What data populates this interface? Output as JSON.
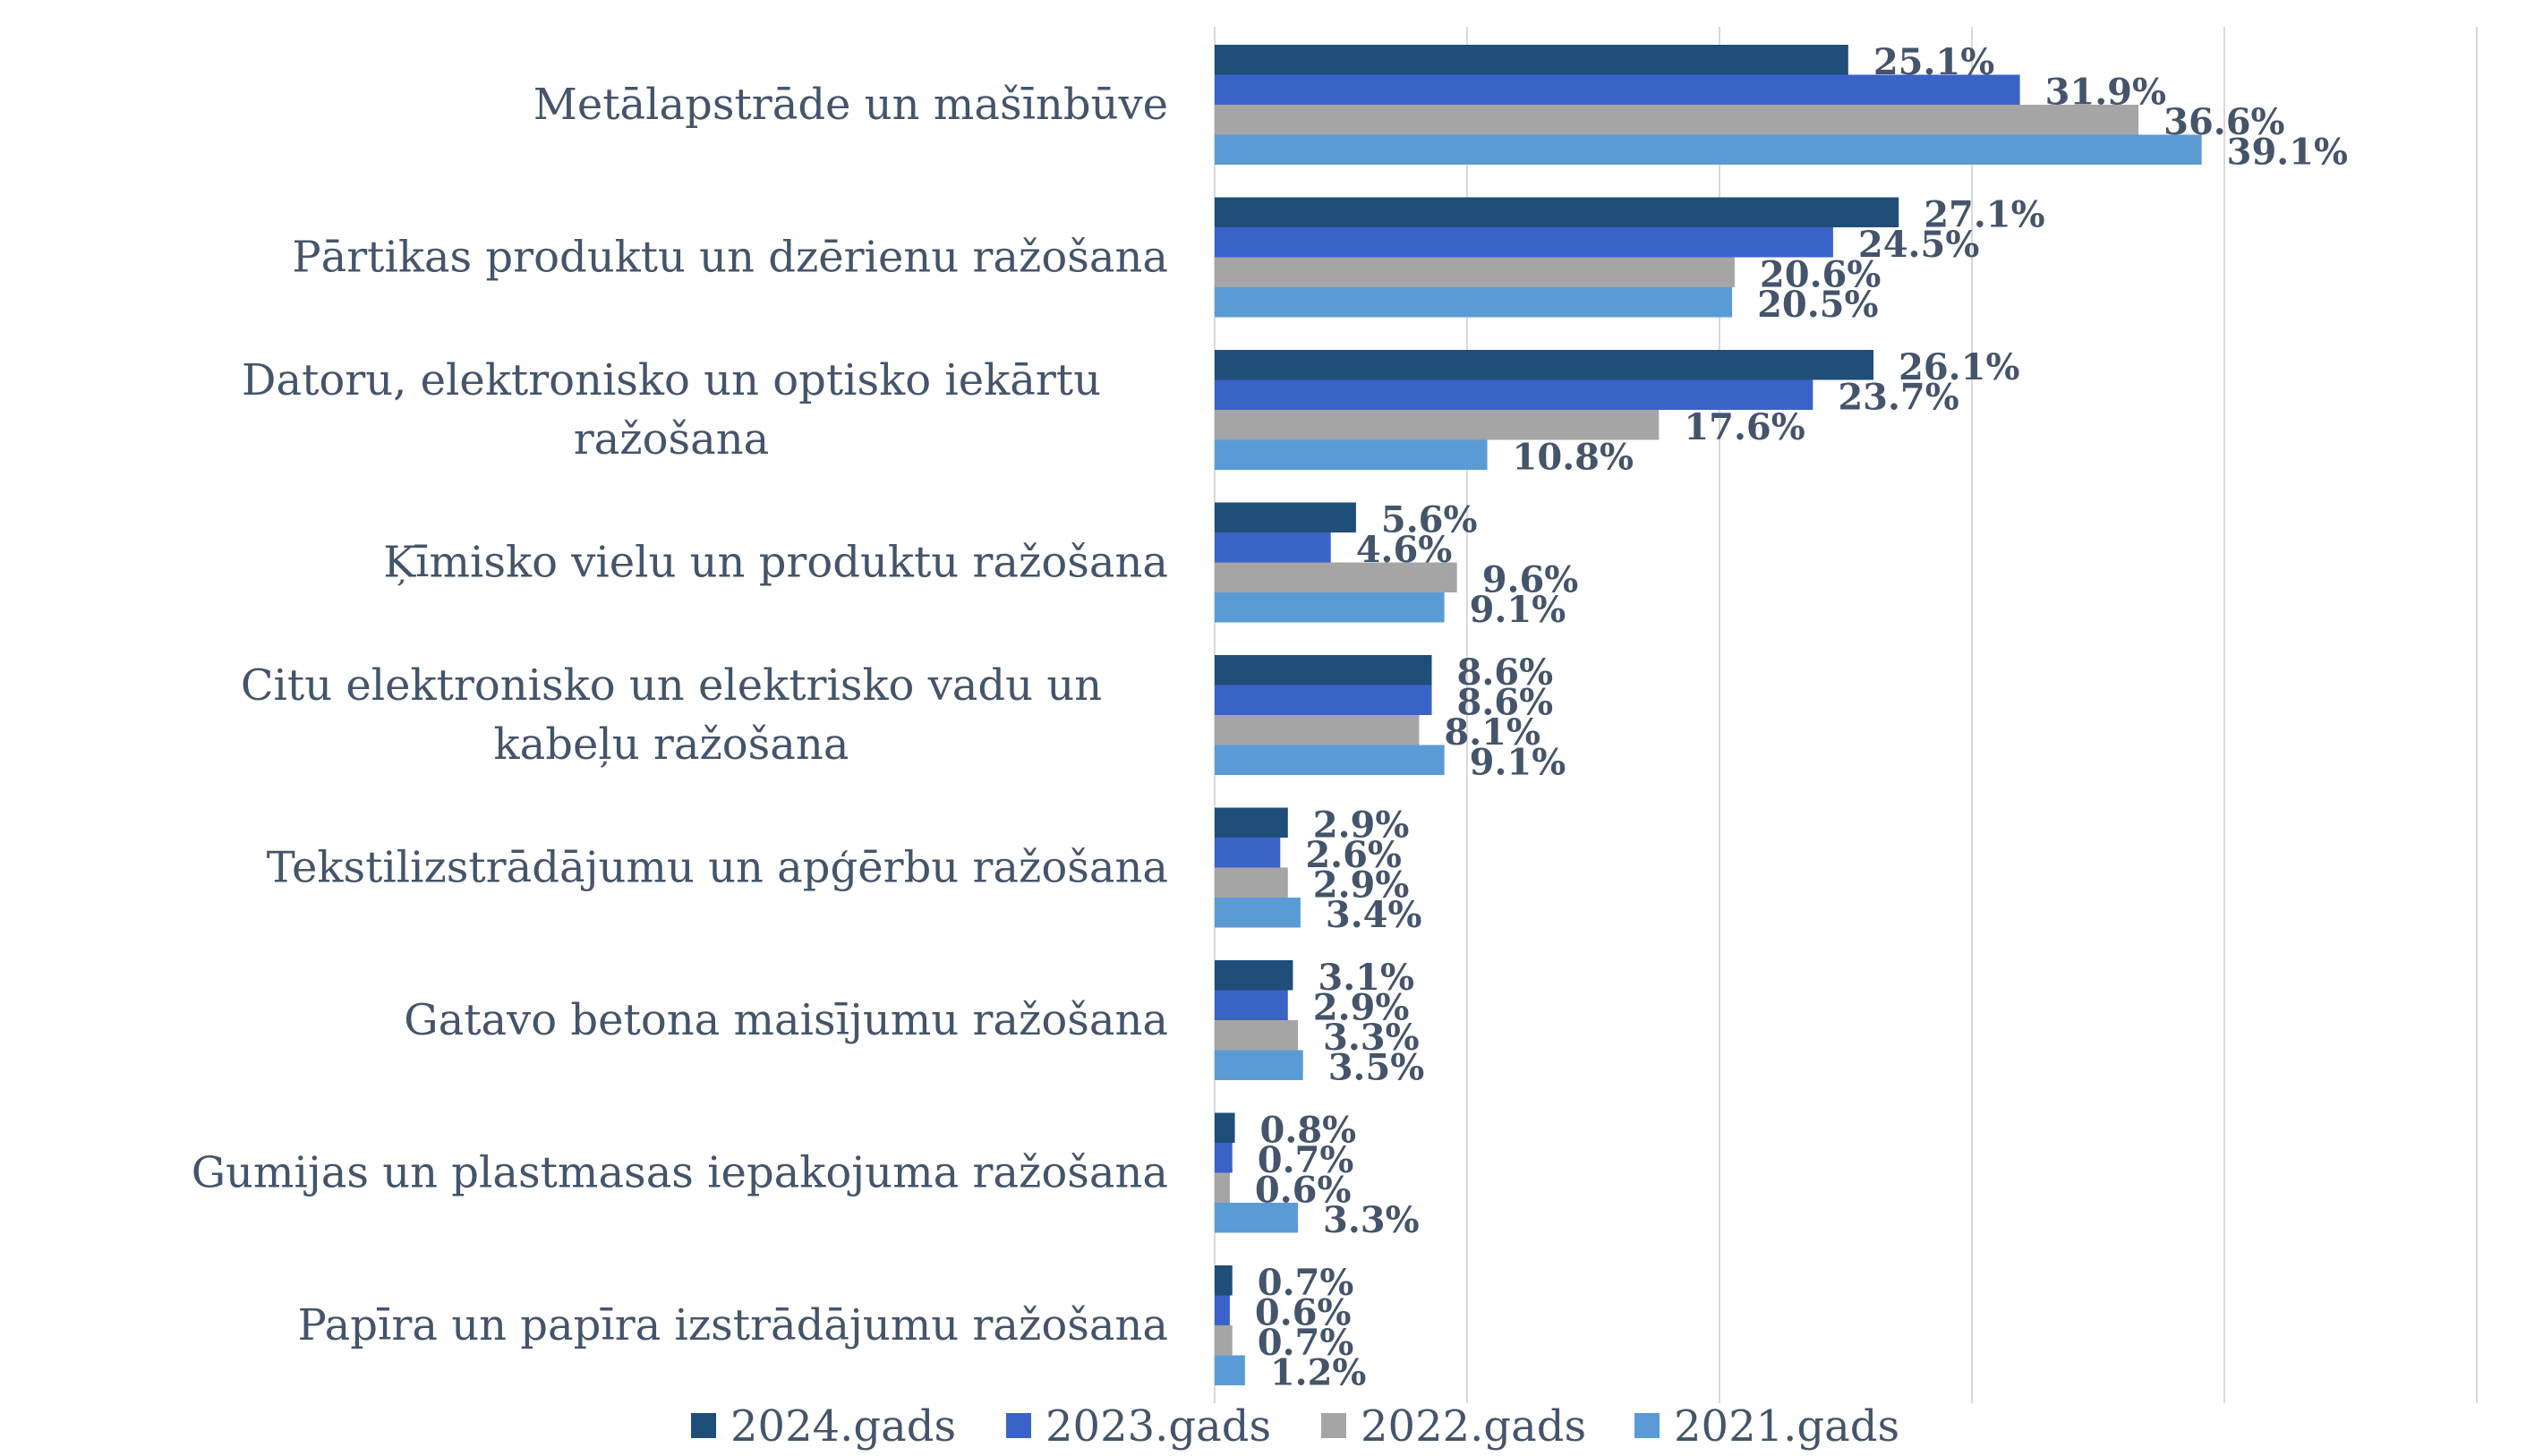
{
  "chart_data": {
    "type": "bar",
    "orientation": "horizontal",
    "categories": [
      "Metālapstrāde un mašīnbūve",
      "Pārtikas produktu un dzērienu ražošana",
      "Datoru, elektronisko un optisko iekārtu ražošana",
      "Ķīmisko vielu un produktu ražošana",
      "Citu elektronisko un elektrisko vadu un kabeļu ražošana",
      "Tekstilizstrādājumu un apģērbu ražošana",
      "Gatavo betona maisījumu ražošana",
      "Gumijas un plastmasas iepakojuma ražošana",
      "Papīra un papīra izstrādājumu ražošana"
    ],
    "series": [
      {
        "name": "2024.gads",
        "color": "#1F4E79",
        "values": [
          25.1,
          27.1,
          26.1,
          5.6,
          8.6,
          2.9,
          3.1,
          0.8,
          0.7
        ],
        "labels": [
          "25.1%",
          "27.1%",
          "26.1%",
          "5.6%",
          "8.6%",
          "2.9%",
          "3.1%",
          "0.8%",
          "0.7%"
        ]
      },
      {
        "name": "2023.gads",
        "color": "#3A63C8",
        "values": [
          31.9,
          24.5,
          23.7,
          4.6,
          8.6,
          2.6,
          2.9,
          0.7,
          0.6
        ],
        "labels": [
          "31.9%",
          "24.5%",
          "23.7%",
          "4.6%",
          "8.6%",
          "2.6%",
          "2.9%",
          "0.7%",
          "0.6%"
        ]
      },
      {
        "name": "2022.gads",
        "color": "#A5A5A5",
        "values": [
          36.6,
          20.6,
          17.6,
          9.6,
          8.1,
          2.9,
          3.3,
          0.6,
          0.7
        ],
        "labels": [
          "36.6%",
          "20.6%",
          "17.6%",
          "9.6%",
          "8.1%",
          "2.9%",
          "3.3%",
          "0.6%",
          "0.7%"
        ]
      },
      {
        "name": "2021.gads",
        "color": "#5B9BD5",
        "values": [
          39.1,
          20.5,
          10.8,
          9.1,
          9.1,
          3.4,
          3.5,
          3.3,
          1.2
        ],
        "labels": [
          "39.1%",
          "20.5%",
          "10.8%",
          "9.1%",
          "9.1%",
          "3.4%",
          "3.5%",
          "3.3%",
          "1.2%"
        ]
      }
    ],
    "xlim": [
      0,
      50
    ],
    "grid": true,
    "legend_position": "bottom"
  }
}
